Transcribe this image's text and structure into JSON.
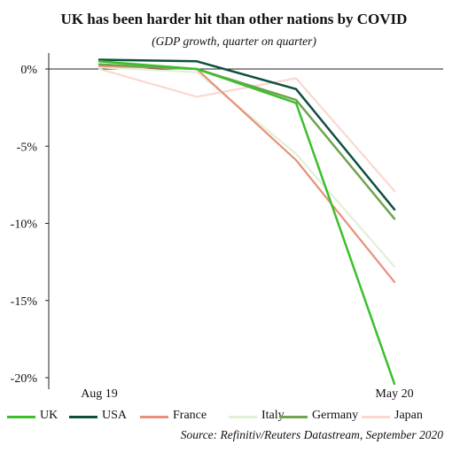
{
  "title": "UK has been harder hit than other nations by COVID",
  "subtitle": "(GDP growth, quarter on quarter)",
  "source": "Source: Refinitiv/Reuters Datastream, September 2020",
  "chart_data": {
    "type": "line",
    "title": "UK has been harder hit than other nations by COVID",
    "subtitle": "(GDP growth, quarter on quarter)",
    "x_tick_labels": [
      "Aug 19",
      "May 20"
    ],
    "y_tick_labels": [
      "0%",
      "-5%",
      "-10%",
      "-15%",
      "-20%"
    ],
    "y_ticks": [
      0,
      -5,
      -10,
      -15,
      -20
    ],
    "ylim": [
      -20,
      0.5
    ],
    "grid": false,
    "legend_position": "bottom",
    "series": [
      {
        "name": "UK",
        "color": "#3bbf2a",
        "width": 2.5,
        "values": [
          0.5,
          0.0,
          -2.2,
          -20.4
        ]
      },
      {
        "name": "USA",
        "color": "#0d4f3f",
        "width": 2.5,
        "values": [
          0.6,
          0.5,
          -1.3,
          -9.1
        ]
      },
      {
        "name": "France",
        "color": "#e8907a",
        "width": 2.2,
        "values": [
          0.2,
          0.0,
          -5.9,
          -13.8
        ]
      },
      {
        "name": "Italy",
        "color": "#e3f0d8",
        "width": 2.2,
        "values": [
          0.1,
          -0.2,
          -5.5,
          -12.8
        ]
      },
      {
        "name": "Germany",
        "color": "#6fa34d",
        "width": 2.5,
        "values": [
          0.3,
          0.0,
          -2.0,
          -9.7
        ]
      },
      {
        "name": "Japan",
        "color": "#fad8d0",
        "width": 2.2,
        "values": [
          0.0,
          -1.8,
          -0.6,
          -7.9
        ]
      }
    ]
  }
}
